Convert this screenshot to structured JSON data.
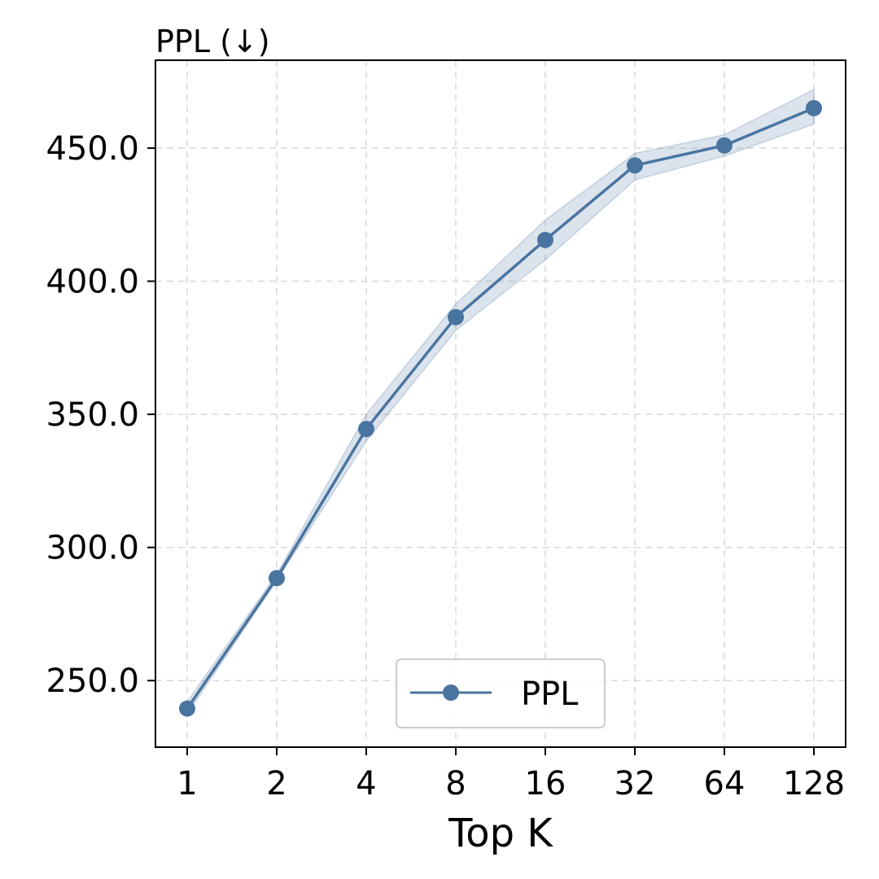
{
  "chart_data": {
    "type": "line",
    "title": "PPL (↓)",
    "xlabel": "Top K",
    "ylabel": "",
    "x_categories": [
      "1",
      "2",
      "4",
      "8",
      "16",
      "32",
      "64",
      "128"
    ],
    "x_scale": "log2",
    "ylim": [
      225,
      483
    ],
    "y_ticks": [
      250.0,
      300.0,
      350.0,
      400.0,
      450.0
    ],
    "y_tick_labels": [
      "250.0",
      "300.0",
      "350.0",
      "400.0",
      "450.0"
    ],
    "grid": true,
    "legend_position": "bottom-center",
    "series": [
      {
        "name": "PPL",
        "color": "#4a74a0",
        "values": [
          239.5,
          288.5,
          344.5,
          386.5,
          415.5,
          443.5,
          451.0,
          465.0
        ],
        "band_lower": [
          237.5,
          287.5,
          340.0,
          381.5,
          408.0,
          438.0,
          447.0,
          459.0
        ],
        "band_upper": [
          242.0,
          290.0,
          350.0,
          391.5,
          423.0,
          448.0,
          455.0,
          472.0
        ]
      }
    ]
  }
}
